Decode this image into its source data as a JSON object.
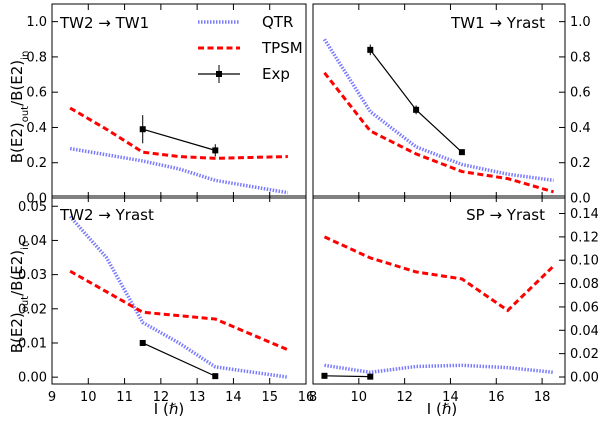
{
  "figure": {
    "ylabel": "B(E2)_out/B(E2)_in",
    "xlabel": "I (ℏ)"
  },
  "legend": [
    {
      "label": "QTR",
      "color": "#7b7bff",
      "style": "dotted-thick"
    },
    {
      "label": "TPSM",
      "color": "#ff0000",
      "style": "dashed"
    },
    {
      "label": "Exp",
      "color": "#000000",
      "style": "solid-square-marker"
    }
  ],
  "chart_data": [
    {
      "type": "line",
      "title": "TW2 → TW1",
      "xlim": [
        9,
        16
      ],
      "ylim": [
        0,
        1.1
      ],
      "xticks": [
        9,
        10,
        11,
        12,
        13,
        14,
        15,
        16
      ],
      "yticks": [
        0.0,
        0.2,
        0.4,
        0.6,
        0.8,
        1.0
      ],
      "ytick_side": "left",
      "series": [
        {
          "name": "QTR",
          "x": [
            9.5,
            10.5,
            11.5,
            12.5,
            13.5,
            14.5,
            15.5
          ],
          "y": [
            0.28,
            0.245,
            0.21,
            0.165,
            0.1,
            0.065,
            0.03
          ]
        },
        {
          "name": "TPSM",
          "x": [
            9.5,
            10.5,
            11.5,
            12.5,
            13.5,
            14.5,
            15.5
          ],
          "y": [
            0.51,
            0.39,
            0.26,
            0.235,
            0.225,
            0.23,
            0.235
          ]
        },
        {
          "name": "Exp",
          "x": [
            11.5,
            13.5
          ],
          "y": [
            0.39,
            0.27
          ],
          "yerr": [
            0.08,
            0.035
          ]
        }
      ]
    },
    {
      "type": "line",
      "title": "TW1 → Yrast",
      "xlim": [
        8,
        19
      ],
      "ylim": [
        0,
        1.1
      ],
      "xticks": [
        8,
        10,
        12,
        14,
        16,
        18,
        20
      ],
      "yticks": [
        0.0,
        0.2,
        0.4,
        0.6,
        0.8,
        1.0
      ],
      "ytick_side": "right",
      "series": [
        {
          "name": "QTR",
          "x": [
            8.5,
            10.5,
            12.5,
            14.5,
            16.5,
            18.5
          ],
          "y": [
            0.9,
            0.49,
            0.29,
            0.19,
            0.135,
            0.1
          ]
        },
        {
          "name": "TPSM",
          "x": [
            8.5,
            10.5,
            12.5,
            14.5,
            16.5,
            18.5
          ],
          "y": [
            0.71,
            0.38,
            0.25,
            0.15,
            0.11,
            0.035
          ]
        },
        {
          "name": "Exp",
          "x": [
            10.5,
            12.5,
            14.5
          ],
          "y": [
            0.84,
            0.5,
            0.26
          ],
          "yerr": [
            0.03,
            0.025,
            0.01
          ]
        }
      ]
    },
    {
      "type": "line",
      "title": "TW2 → Yrast",
      "xlim": [
        9,
        16
      ],
      "ylim": [
        -0.002,
        0.053
      ],
      "xticks": [
        9,
        10,
        11,
        12,
        13,
        14,
        15,
        16
      ],
      "yticks": [
        0.0,
        0.01,
        0.02,
        0.03,
        0.04,
        0.05
      ],
      "ytick_side": "left",
      "series": [
        {
          "name": "QTR",
          "x": [
            9.5,
            10.5,
            11.5,
            12.5,
            13.5,
            14.5,
            15.5
          ],
          "y": [
            0.047,
            0.035,
            0.016,
            0.01,
            0.003,
            0.0015,
            0.0
          ]
        },
        {
          "name": "TPSM",
          "x": [
            9.5,
            10.5,
            11.5,
            12.5,
            13.5,
            14.5,
            15.5
          ],
          "y": [
            0.031,
            0.025,
            0.019,
            0.018,
            0.017,
            0.0125,
            0.008
          ]
        },
        {
          "name": "Exp",
          "x": [
            11.5,
            13.5
          ],
          "y": [
            0.01,
            0.0003
          ],
          "yerr": [
            0.0008,
            0.0004
          ]
        }
      ]
    },
    {
      "type": "line",
      "title": "SP → Yrast",
      "xlim": [
        8,
        19
      ],
      "ylim": [
        -0.006,
        0.155
      ],
      "xticks": [
        8,
        10,
        12,
        14,
        16,
        18,
        20
      ],
      "yticks": [
        0.0,
        0.02,
        0.04,
        0.06,
        0.08,
        0.1,
        0.12,
        0.14
      ],
      "ytick_side": "right",
      "series": [
        {
          "name": "QTR",
          "x": [
            8.5,
            10.5,
            12.5,
            14.5,
            16.5,
            18.5
          ],
          "y": [
            0.01,
            0.004,
            0.009,
            0.01,
            0.008,
            0.004
          ]
        },
        {
          "name": "TPSM",
          "x": [
            8.5,
            10.5,
            12.5,
            14.5,
            16.5,
            18.5
          ],
          "y": [
            0.12,
            0.102,
            0.09,
            0.084,
            0.057,
            0.095
          ]
        },
        {
          "name": "Exp",
          "x": [
            8.5,
            10.5
          ],
          "y": [
            0.001,
            0.0003
          ],
          "yerr": [
            0.001,
            0.001
          ]
        }
      ]
    }
  ]
}
